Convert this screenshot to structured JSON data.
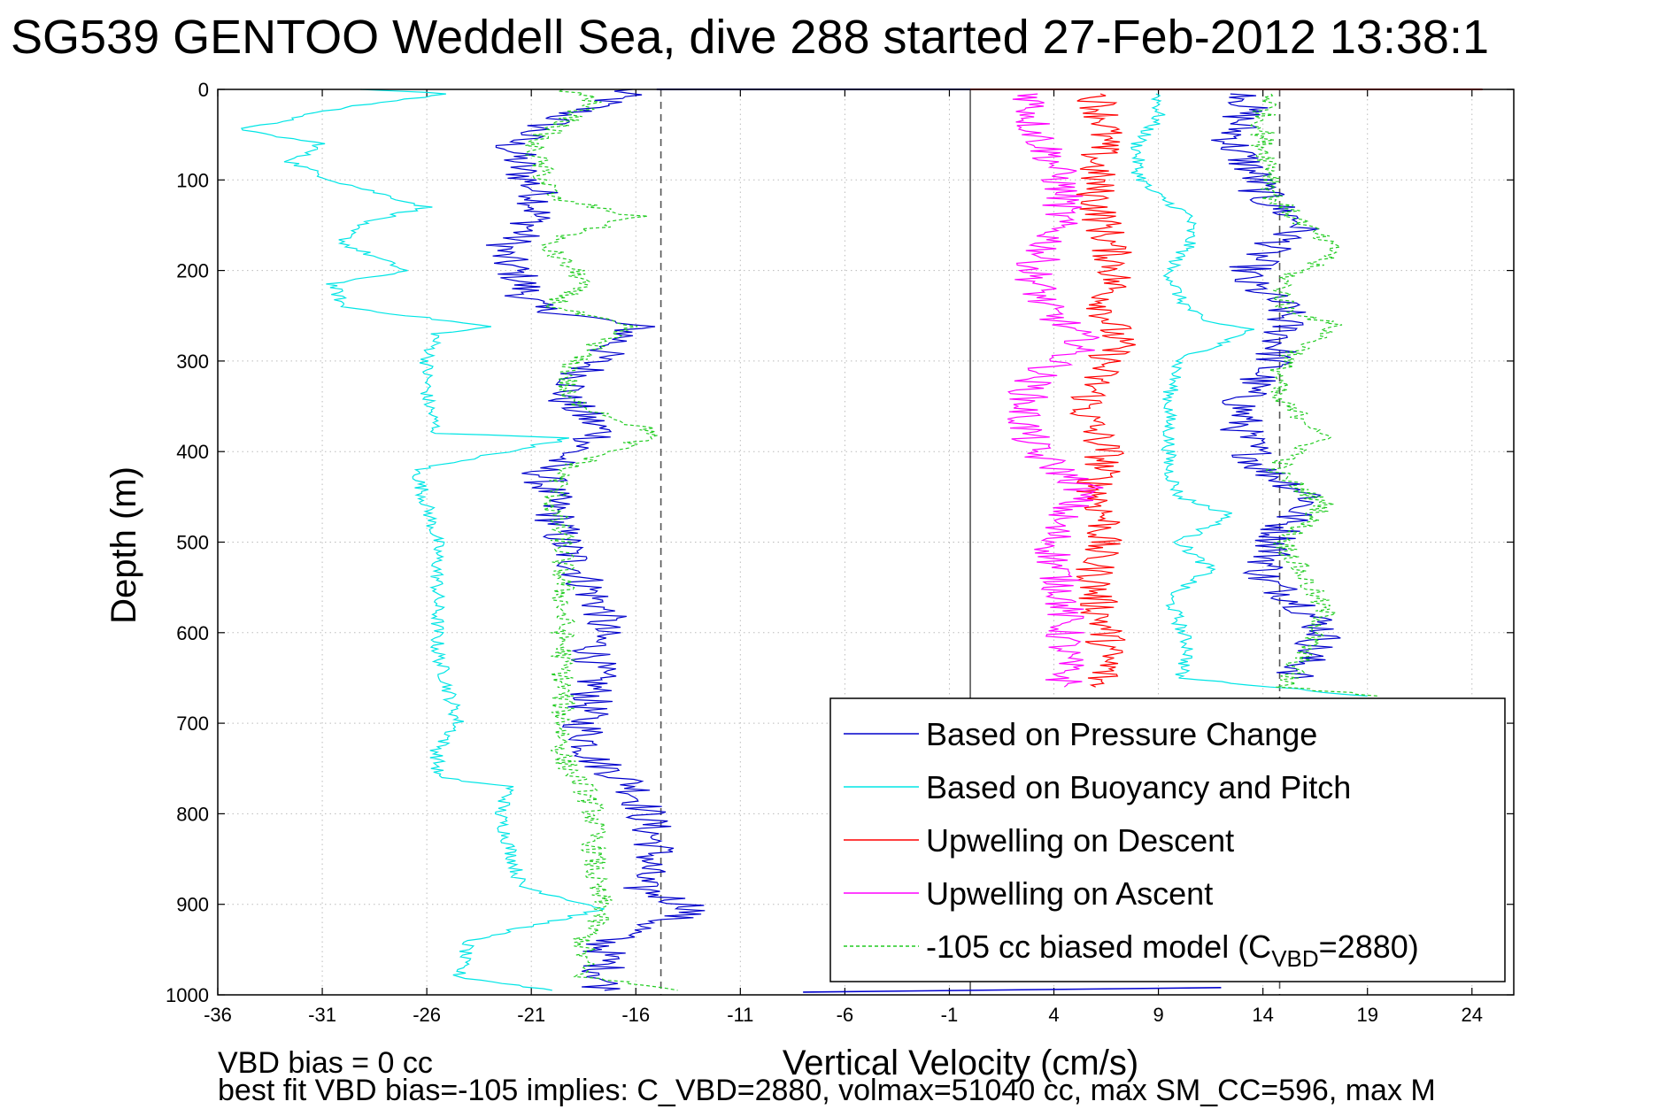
{
  "chart_data": {
    "type": "line",
    "title": "SG539 GENTOO Weddell Sea, dive 288 started 27-Feb-2012 13:38:1",
    "xlabel": "Vertical Velocity (cm/s)",
    "ylabel": "Depth (m)",
    "xlim": [
      -36,
      26
    ],
    "ylim": [
      0,
      1000
    ],
    "y_reversed": true,
    "grid": true,
    "legend_position": "lower-right",
    "x_ticks": [
      "-36",
      "-31",
      "-26",
      "-21",
      "-16",
      "-11",
      "-6",
      "-1",
      "4",
      "9",
      "14",
      "19",
      "24"
    ],
    "y_ticks": [
      "0",
      "100",
      "200",
      "300",
      "400",
      "500",
      "600",
      "700",
      "800",
      "900",
      "1000"
    ],
    "reference_lines": [
      {
        "x": -14.8,
        "style": "dashed",
        "color": "#555555"
      },
      {
        "x": 14.8,
        "style": "dashed",
        "color": "#555555"
      },
      {
        "x": 0,
        "style": "solid",
        "color": "#555555"
      }
    ],
    "series": [
      {
        "name": "Based on Pressure Change",
        "color": "#0000cc",
        "segments": [
          {
            "depth": [
              0,
              10,
              30,
              60,
              90,
              120,
              150,
              180,
              210,
              240,
              262,
              300,
              340,
              380,
              420,
              460,
              500,
              540,
              580,
              620,
              660,
              700,
              740,
              770,
              800,
              840,
              880,
              905,
              940,
              980,
              995
            ],
            "value": [
              -16.5,
              -17,
              -19.5,
              -22,
              -21.5,
              -20.5,
              -21,
              -22.5,
              -21.5,
              -21,
              -16,
              -18,
              -19.5,
              -17.5,
              -20.5,
              -20,
              -19.5,
              -18.5,
              -17.5,
              -18,
              -18,
              -18.5,
              -18,
              -16,
              -15.5,
              -15,
              -16,
              -13,
              -17.5,
              -17.5,
              -17.5
            ]
          },
          {
            "depth": [
              5,
              30,
              60,
              90,
              120,
              150,
              180,
              210,
              240,
              270,
              300,
              340,
              380,
              420,
              450,
              480,
              510,
              540,
              570,
              600,
              630,
              650
            ],
            "value": [
              13.5,
              13,
              12.5,
              13.5,
              14,
              16,
              14,
              13,
              15,
              15,
              14.5,
              13,
              13,
              14,
              16.5,
              15,
              14.5,
              14,
              16,
              17,
              16,
              15.5
            ]
          }
        ]
      },
      {
        "name": "Based on Buoyancy and Pitch",
        "color": "#00e5e5",
        "segments": [
          {
            "depth": [
              0,
              5,
              20,
              45,
              60,
              80,
              100,
              110,
              130,
              150,
              170,
              200,
              215,
              240,
              262,
              270,
              300,
              340,
              380,
              385,
              420,
              460,
              500,
              540,
              580,
              620,
              660,
              700,
              730,
              760,
              770,
              800,
              840,
              880,
              905,
              940,
              980,
              995
            ],
            "value": [
              -29,
              -25,
              -30,
              -35,
              -31,
              -32.5,
              -30.5,
              -29,
              -26,
              -29.5,
              -30,
              -27,
              -30.5,
              -30,
              -23,
              -25.5,
              -26,
              -26,
              -25.5,
              -19,
              -26.5,
              -26,
              -25.5,
              -25.5,
              -25.5,
              -25.5,
              -25,
              -24.5,
              -25.5,
              -25.5,
              -22,
              -22.5,
              -22,
              -21.5,
              -17.5,
              -24,
              -24.5,
              -20
            ]
          },
          {
            "depth": [
              5,
              30,
              60,
              90,
              110,
              140,
              170,
              200,
              230,
              255,
              265,
              300,
              340,
              380,
              420,
              450,
              470,
              500,
              530,
              560,
              590,
              620,
              650,
              670
            ],
            "value": [
              9,
              9,
              8,
              8,
              8.5,
              10.5,
              10.5,
              9.5,
              10,
              11,
              13.5,
              10,
              9.5,
              9.5,
              9.5,
              10,
              12.5,
              10,
              11.5,
              9.5,
              10,
              10.5,
              10,
              19
            ]
          }
        ]
      },
      {
        "name": "Upwelling on Descent",
        "color": "#ff0000",
        "segments": [
          {
            "depth": [
              5,
              40,
              80,
              120,
              160,
              200,
              240,
              280,
              320,
              360,
              400,
              440,
              480,
              520,
              560,
              600,
              640,
              660
            ],
            "value": [
              6,
              6.5,
              6,
              6,
              6.5,
              7,
              6.5,
              7,
              6,
              5.5,
              6.5,
              6,
              6.5,
              6,
              6,
              6.5,
              6.5,
              6
            ]
          },
          {
            "depth": [
              0
            ],
            "value": [
              24.5
            ]
          }
        ]
      },
      {
        "name": "Upwelling on Ascent",
        "color": "#ff00ff",
        "segments": [
          {
            "depth": [
              5,
              40,
              80,
              120,
              160,
              200,
              240,
              280,
              320,
              360,
              400,
              440,
              480,
              520,
              560,
              600,
              640,
              660
            ],
            "value": [
              3,
              3,
              4,
              4.5,
              4,
              3,
              3.5,
              5.5,
              3,
              2.5,
              3,
              5.5,
              4,
              4,
              4.5,
              4.5,
              4.5,
              4.5
            ]
          }
        ]
      },
      {
        "name": "-105 cc biased model (C_VBD=2880)",
        "color": "#22cc22",
        "style": "dashed",
        "segments": [
          {
            "depth": [
              0,
              10,
              30,
              60,
              90,
              120,
              140,
              170,
              210,
              240,
              262,
              300,
              340,
              380,
              420,
              460,
              500,
              540,
              580,
              620,
              660,
              700,
              740,
              770,
              800,
              840,
              880,
              905,
              940,
              980,
              995
            ],
            "value": [
              -19.5,
              -18,
              -19,
              -21,
              -20.5,
              -20,
              -16,
              -20.5,
              -18.5,
              -20,
              -16.5,
              -19,
              -19.5,
              -15,
              -19.5,
              -20,
              -19.5,
              -19.5,
              -19.5,
              -19.5,
              -19.5,
              -19.5,
              -19.5,
              -18.5,
              -18,
              -18,
              -18,
              -17.5,
              -18.5,
              -18.5,
              -14
            ]
          },
          {
            "depth": [
              5,
              30,
              60,
              90,
              120,
              150,
              180,
              210,
              240,
              262,
              300,
              340,
              380,
              420,
              460,
              500,
              540,
              580,
              620,
              660,
              670
            ],
            "value": [
              14.5,
              14,
              14,
              14.5,
              14.5,
              16,
              17.5,
              15,
              15,
              17.5,
              15,
              14.5,
              17,
              14.5,
              17,
              15,
              16,
              17,
              16,
              15,
              19.5
            ]
          }
        ]
      }
    ]
  },
  "legend": {
    "items": [
      {
        "label": "Based on Pressure Change",
        "color": "#0000cc",
        "style": "solid"
      },
      {
        "label": "Based on Buoyancy and Pitch",
        "color": "#00e5e5",
        "style": "solid"
      },
      {
        "label": "Upwelling on Descent",
        "color": "#ff0000",
        "style": "solid"
      },
      {
        "label": "Upwelling on Ascent",
        "color": "#ff00ff",
        "style": "solid"
      },
      {
        "label": "-105 cc biased model (C",
        "label_sub": "VBD",
        "label_tail": "=2880)",
        "color": "#22cc22",
        "style": "dashed"
      }
    ]
  },
  "footnotes": {
    "line1": "VBD bias = 0 cc",
    "line2": "best fit VBD bias=-105 implies: C_VBD=2880, volmax=51040 cc, max SM_CC=596, max M"
  }
}
